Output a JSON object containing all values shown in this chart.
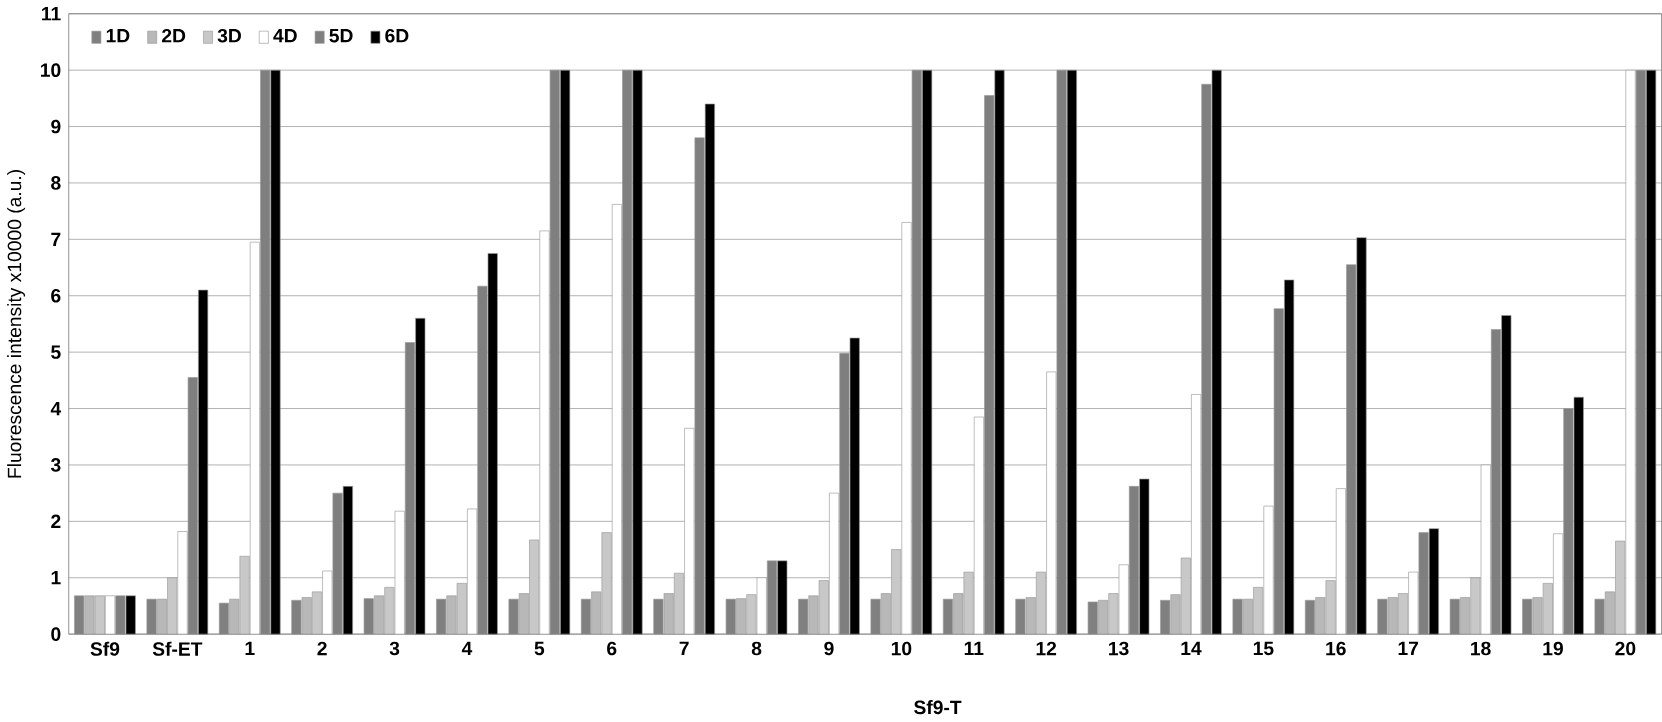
{
  "chart_data": {
    "type": "bar",
    "ylabel": "Fluorescence intensity x10000 (a.u.)",
    "categories": [
      "Sf9",
      "Sf-ET",
      "1",
      "2",
      "3",
      "4",
      "5",
      "6",
      "7",
      "8",
      "9",
      "10",
      "11",
      "12",
      "13",
      "14",
      "15",
      "16",
      "17",
      "18",
      "19",
      "20"
    ],
    "series": [
      {
        "name": "1D",
        "color": "#808080",
        "values": [
          0.68,
          0.62,
          0.55,
          0.6,
          0.63,
          0.62,
          0.62,
          0.62,
          0.62,
          0.62,
          0.62,
          0.62,
          0.62,
          0.62,
          0.57,
          0.6,
          0.62,
          0.6,
          0.62,
          0.62,
          0.62,
          0.62
        ]
      },
      {
        "name": "2D",
        "color": "#b8b8b8",
        "values": [
          0.68,
          0.62,
          0.62,
          0.65,
          0.68,
          0.68,
          0.72,
          0.75,
          0.72,
          0.63,
          0.68,
          0.72,
          0.72,
          0.65,
          0.6,
          0.7,
          0.62,
          0.65,
          0.65,
          0.65,
          0.65,
          0.75
        ]
      },
      {
        "name": "3D",
        "color": "#c8c8c8",
        "values": [
          0.68,
          1.0,
          1.38,
          0.75,
          0.83,
          0.9,
          1.67,
          1.8,
          1.08,
          0.7,
          0.95,
          1.5,
          1.1,
          1.1,
          0.72,
          1.35,
          0.83,
          0.95,
          0.72,
          1.0,
          0.9,
          1.65
        ]
      },
      {
        "name": "4D",
        "color": "#ffffff",
        "values": [
          0.68,
          1.82,
          6.95,
          1.12,
          2.18,
          2.22,
          7.15,
          7.62,
          3.65,
          1.0,
          2.5,
          7.3,
          3.85,
          4.65,
          1.23,
          4.25,
          2.27,
          2.58,
          1.1,
          3.0,
          1.78,
          10
        ]
      },
      {
        "name": "5D",
        "color": "#7f7f7f",
        "values": [
          0.68,
          4.55,
          10,
          2.5,
          5.17,
          6.17,
          10,
          10,
          8.8,
          1.3,
          4.98,
          10,
          9.55,
          10,
          2.62,
          9.75,
          5.77,
          6.55,
          1.8,
          5.4,
          4.0,
          10
        ]
      },
      {
        "name": "6D",
        "color": "#000000",
        "values": [
          0.68,
          6.1,
          10,
          2.62,
          5.6,
          6.75,
          10,
          10,
          9.4,
          1.3,
          5.25,
          10,
          10,
          10,
          2.75,
          10,
          6.28,
          7.03,
          1.87,
          5.65,
          4.2,
          10
        ]
      }
    ],
    "annotations": [
      "Sf9-T"
    ],
    "ylim": [
      0,
      11
    ],
    "yticks": [
      0,
      1,
      2,
      3,
      4,
      5,
      6,
      7,
      8,
      9,
      10,
      11
    ],
    "grid": "y",
    "legend": "top left"
  }
}
